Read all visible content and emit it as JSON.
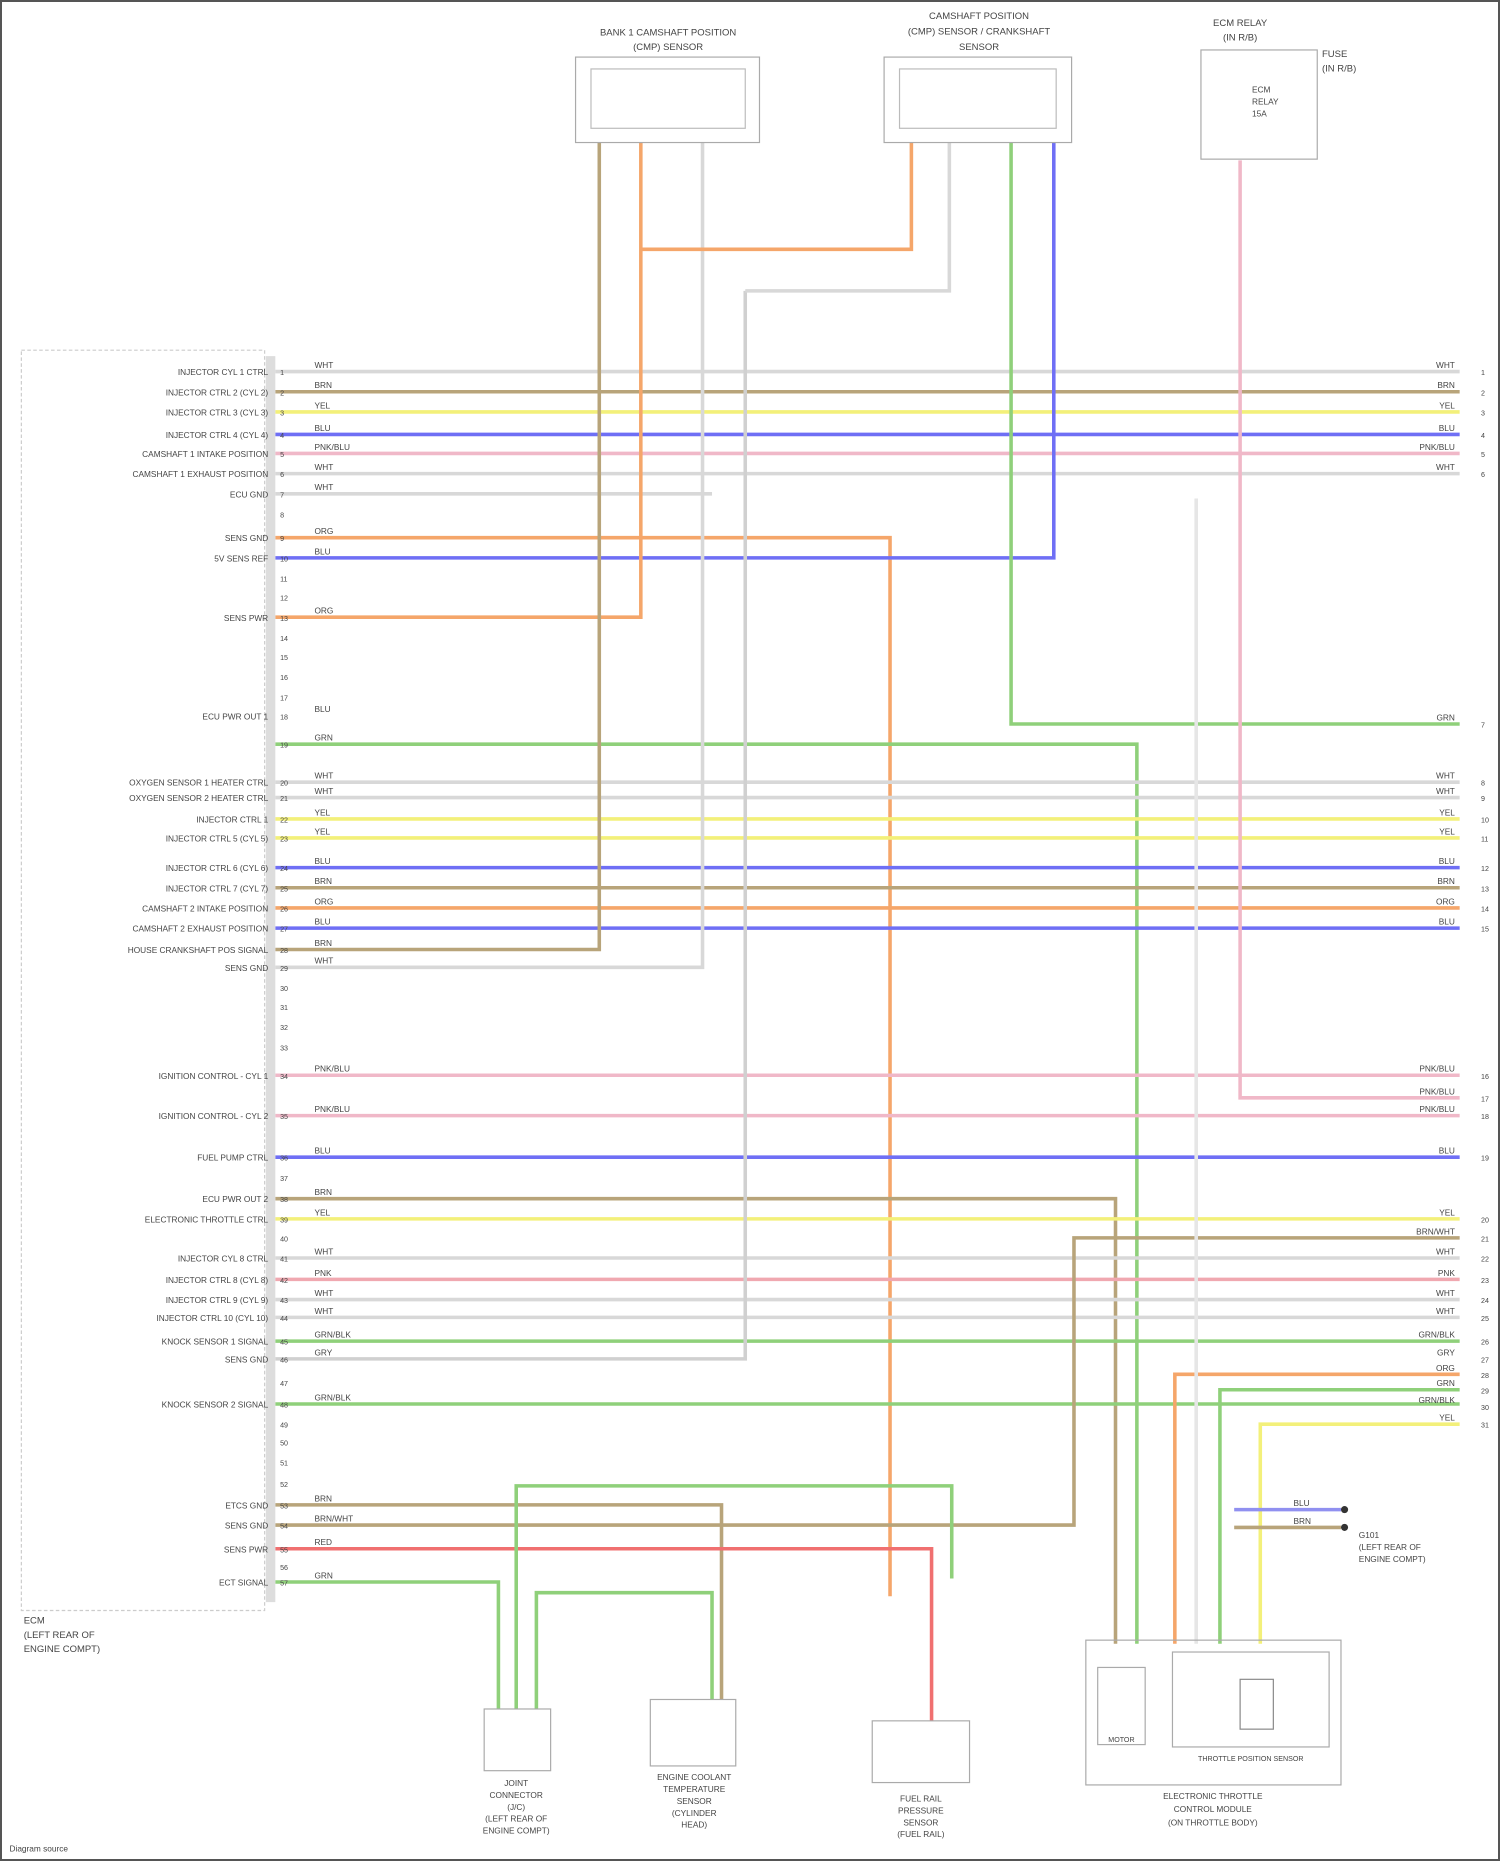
{
  "diagram": {
    "footer_credit": "Diagram source",
    "ecm": {
      "label_lines": [
        "ECM",
        "(LEFT REAR OF",
        "ENGINE COMPT)"
      ]
    },
    "top_components": [
      {
        "name": "left-sensor",
        "label_lines": [
          "BANK 1 CAMSHAFT POSITION",
          "(CMP) SENSOR"
        ]
      },
      {
        "name": "center-sensor",
        "label_lines": [
          "CAMSHAFT POSITION",
          "(CMP) SENSOR / CRANKSHAFT",
          "SENSOR"
        ]
      },
      {
        "name": "relay",
        "label_lines": [
          "ECM RELAY",
          "(IN R/B)"
        ],
        "side_label_lines": [
          "FUSE",
          "(IN R/B)"
        ],
        "inner_lines": [
          "ECM",
          "RELAY",
          "15A"
        ]
      }
    ],
    "bottom_components": [
      {
        "name": "joint-connector",
        "label_lines": [
          "JOINT",
          "CONNECTOR",
          "(J/C)",
          "(LEFT REAR OF",
          "ENGINE COMPT)"
        ]
      },
      {
        "name": "coolant-temp-sensor",
        "label_lines": [
          "ENGINE COOLANT",
          "TEMPERATURE",
          "SENSOR",
          "(CYLINDER",
          "HEAD)"
        ]
      },
      {
        "name": "fuel-pressure-sensor",
        "label_lines": [
          "FUEL RAIL",
          "PRESSURE",
          "SENSOR",
          "(FUEL RAIL)"
        ]
      },
      {
        "name": "throttle-module",
        "label_lines": [
          "ELECTRONIC THROTTLE",
          "CONTROL MODULE",
          "(ON THROTTLE BODY)"
        ],
        "inner_label": "THROTTLE POSITION SENSOR",
        "motor_label": "MOTOR"
      }
    ],
    "ground": {
      "label_lines": [
        "G101",
        "(LEFT REAR OF",
        "ENGINE COMPT)"
      ],
      "wires": [
        "BLU",
        "BRN"
      ]
    },
    "pins": [
      {
        "pin": "1",
        "label": "INJECTOR CYL 1 CTRL",
        "wire": "WHT",
        "color": "#d8d8d8"
      },
      {
        "pin": "2",
        "label": "INJECTOR CTRL 2 (CYL 2)",
        "wire": "BRN",
        "color": "#b8a47a"
      },
      {
        "pin": "3",
        "label": "INJECTOR CTRL 3 (CYL 3)",
        "wire": "YEL",
        "color": "#f3f07a"
      },
      {
        "pin": "4",
        "label": "INJECTOR CTRL 4 (CYL 4)",
        "wire": "BLU",
        "color": "#6f6ff5"
      },
      {
        "pin": "5",
        "label": "CAMSHAFT 1 INTAKE POSITION",
        "wire": "PNK/BLU",
        "color": "#f0b8c8"
      },
      {
        "pin": "6",
        "label": "CAMSHAFT 1 EXHAUST POSITION",
        "wire": "WHT",
        "color": "#d8d8d8"
      },
      {
        "pin": "7",
        "label": "ECU GND",
        "wire": "WHT",
        "color": "#d8d8d8"
      },
      {
        "pin": "8",
        "label": "",
        "wire": "",
        "color": ""
      },
      {
        "pin": "9",
        "label": "SENS GND",
        "wire": "ORG",
        "color": "#f5a66a"
      },
      {
        "pin": "10",
        "label": "5V SENS REF",
        "wire": "BLU",
        "color": "#6f6ff5"
      },
      {
        "pin": "11",
        "label": "",
        "wire": "",
        "color": ""
      },
      {
        "pin": "12",
        "label": "",
        "wire": "",
        "color": ""
      },
      {
        "pin": "13",
        "label": "SENS PWR",
        "wire": "ORG",
        "color": "#f5a66a"
      },
      {
        "pin": "14",
        "label": "",
        "wire": "",
        "color": ""
      },
      {
        "pin": "15",
        "label": "",
        "wire": "",
        "color": ""
      },
      {
        "pin": "16",
        "label": "",
        "wire": "",
        "color": ""
      },
      {
        "pin": "17",
        "label": "",
        "wire": "",
        "color": ""
      },
      {
        "pin": "18",
        "label": "ECU PWR OUT 1",
        "wire": "BLU",
        "color": "#6f6ff5"
      },
      {
        "pin": "19",
        "label": "",
        "wire": "GRN",
        "color": "#8fd07a"
      },
      {
        "pin": "20",
        "label": "OXYGEN SENSOR 1 HEATER CTRL",
        "wire": "WHT",
        "color": "#d8d8d8"
      },
      {
        "pin": "21",
        "label": "OXYGEN SENSOR 2 HEATER CTRL",
        "wire": "WHT",
        "color": "#d8d8d8"
      },
      {
        "pin": "22",
        "label": "INJECTOR CTRL 1",
        "wire": "YEL",
        "color": "#f3f07a"
      },
      {
        "pin": "23",
        "label": "INJECTOR CTRL 5 (CYL 5)",
        "wire": "YEL",
        "color": "#f3f07a"
      },
      {
        "pin": "24",
        "label": "INJECTOR CTRL 6 (CYL 6)",
        "wire": "BLU",
        "color": "#6f6ff5"
      },
      {
        "pin": "25",
        "label": "INJECTOR CTRL 7 (CYL 7)",
        "wire": "BRN",
        "color": "#b8a47a"
      },
      {
        "pin": "26",
        "label": "CAMSHAFT 2 INTAKE POSITION",
        "wire": "ORG",
        "color": "#f5a66a"
      },
      {
        "pin": "27",
        "label": "CAMSHAFT 2 EXHAUST POSITION",
        "wire": "BLU",
        "color": "#6f6ff5"
      },
      {
        "pin": "28",
        "label": "HOUSE CRANKSHAFT POS SIGNAL",
        "wire": "BRN",
        "color": "#b8a47a"
      },
      {
        "pin": "29",
        "label": "SENS GND",
        "wire": "WHT",
        "color": "#d8d8d8"
      },
      {
        "pin": "30",
        "label": "",
        "wire": "",
        "color": ""
      },
      {
        "pin": "31",
        "label": "",
        "wire": "",
        "color": ""
      },
      {
        "pin": "32",
        "label": "",
        "wire": "",
        "color": ""
      },
      {
        "pin": "33",
        "label": "",
        "wire": "",
        "color": ""
      },
      {
        "pin": "34",
        "label": "IGNITION CONTROL - CYL 1",
        "wire": "PNK/BLU",
        "color": "#f0b8c8"
      },
      {
        "pin": "35",
        "label": "IGNITION CONTROL - CYL 2",
        "wire": "PNK/BLU",
        "color": "#f0b8c8"
      },
      {
        "pin": "36",
        "label": "FUEL PUMP CTRL",
        "wire": "BLU",
        "color": "#6f6ff5"
      },
      {
        "pin": "37",
        "label": "",
        "wire": "",
        "color": ""
      },
      {
        "pin": "38",
        "label": "ECU PWR OUT 2",
        "wire": "BRN",
        "color": "#b8a47a"
      },
      {
        "pin": "39",
        "label": "ELECTRONIC THROTTLE CTRL",
        "wire": "YEL",
        "color": "#f3f07a"
      },
      {
        "pin": "40",
        "label": "",
        "wire": "",
        "color": ""
      },
      {
        "pin": "41",
        "label": "INJECTOR CYL 8 CTRL",
        "wire": "WHT",
        "color": "#d8d8d8"
      },
      {
        "pin": "42",
        "label": "INJECTOR CTRL 8 (CYL 8)",
        "wire": "PNK",
        "color": "#f0a8b0"
      },
      {
        "pin": "43",
        "label": "INJECTOR CTRL 9 (CYL 9)",
        "wire": "WHT",
        "color": "#d8d8d8"
      },
      {
        "pin": "44",
        "label": "INJECTOR CTRL 10 (CYL 10)",
        "wire": "WHT",
        "color": "#d8d8d8"
      },
      {
        "pin": "45",
        "label": "KNOCK SENSOR 1 SIGNAL",
        "wire": "GRN/BLK",
        "color": "#8fd07a"
      },
      {
        "pin": "46",
        "label": "SENS GND",
        "wire": "GRY",
        "color": "#d0d0d0"
      },
      {
        "pin": "47",
        "label": "",
        "wire": "",
        "color": ""
      },
      {
        "pin": "48",
        "label": "KNOCK SENSOR 2 SIGNAL",
        "wire": "GRN/BLK",
        "color": "#8fd07a"
      },
      {
        "pin": "49",
        "label": "",
        "wire": "",
        "color": ""
      },
      {
        "pin": "50",
        "label": "",
        "wire": "",
        "color": ""
      },
      {
        "pin": "51",
        "label": "",
        "wire": "",
        "color": ""
      },
      {
        "pin": "52",
        "label": "",
        "wire": "",
        "color": ""
      },
      {
        "pin": "53",
        "label": "ETCS GND",
        "wire": "BRN",
        "color": "#b8a47a"
      },
      {
        "pin": "54",
        "label": "SENS GND",
        "wire": "BRN/WHT",
        "color": "#b8a47a"
      },
      {
        "pin": "55",
        "label": "SENS PWR",
        "wire": "RED",
        "color": "#f07070"
      },
      {
        "pin": "56",
        "label": "",
        "wire": "",
        "color": ""
      },
      {
        "pin": "57",
        "label": "ECT SIGNAL",
        "wire": "GRN",
        "color": "#8fd07a"
      }
    ],
    "right_wires": [
      {
        "wire": "WHT",
        "pin": "1"
      },
      {
        "wire": "BRN",
        "pin": "2"
      },
      {
        "wire": "YEL",
        "pin": "3"
      },
      {
        "wire": "BLU",
        "pin": "4"
      },
      {
        "wire": "PNK/BLU",
        "pin": "5"
      },
      {
        "wire": "WHT",
        "pin": "6"
      },
      {
        "wire": "GRN",
        "pin": "7"
      },
      {
        "wire": "WHT",
        "pin": "8"
      },
      {
        "wire": "WHT",
        "pin": "9"
      },
      {
        "wire": "YEL",
        "pin": "10"
      },
      {
        "wire": "YEL",
        "pin": "11"
      },
      {
        "wire": "BLU",
        "pin": "12"
      },
      {
        "wire": "BRN",
        "pin": "13"
      },
      {
        "wire": "ORG",
        "pin": "14"
      },
      {
        "wire": "BLU",
        "pin": "15"
      },
      {
        "wire": "PNK/BLU",
        "pin": "16"
      },
      {
        "wire": "PNK/BLU",
        "pin": "17"
      },
      {
        "wire": "PNK/BLU",
        "pin": "18"
      },
      {
        "wire": "BLU",
        "pin": "19"
      },
      {
        "wire": "YEL",
        "pin": "20"
      },
      {
        "wire": "BRN/WHT",
        "pin": "21"
      },
      {
        "wire": "WHT",
        "pin": "22"
      },
      {
        "wire": "PNK",
        "pin": "23"
      },
      {
        "wire": "WHT",
        "pin": "24"
      },
      {
        "wire": "WHT",
        "pin": "25"
      },
      {
        "wire": "GRN/BLK",
        "pin": "26"
      },
      {
        "wire": "GRY",
        "pin": "27"
      },
      {
        "wire": "ORG",
        "pin": "28"
      },
      {
        "wire": "GRN",
        "pin": "29"
      },
      {
        "wire": "GRN/BLK",
        "pin": "30"
      },
      {
        "wire": "YEL",
        "pin": "31"
      }
    ]
  }
}
